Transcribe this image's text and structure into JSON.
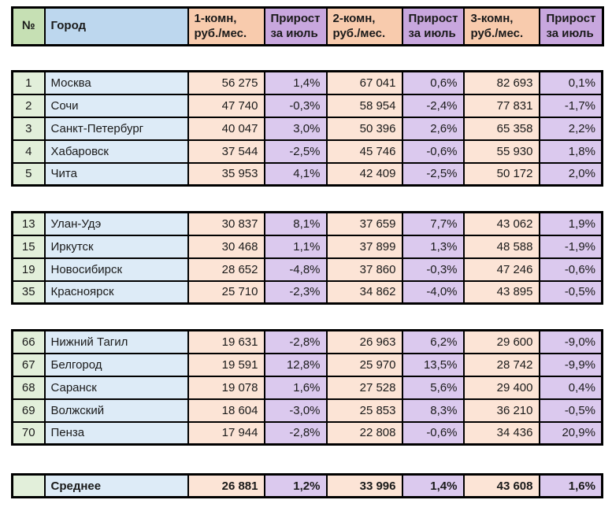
{
  "table": {
    "headers": [
      "№",
      "Город",
      "1-комн,\nруб./мес.",
      "Прирост\nза июль",
      "2-комн,\nруб./мес.",
      "Прирост\nза июль",
      "3-комн,\nруб./мес.",
      "Прирост\nза июль"
    ],
    "blocks": [
      {
        "name": "top-cities",
        "rows": [
          [
            "1",
            "Москва",
            "56 275",
            "1,4%",
            "67 041",
            "0,6%",
            "82 693",
            "0,1%"
          ],
          [
            "2",
            "Сочи",
            "47 740",
            "-0,3%",
            "58 954",
            "-2,4%",
            "77 831",
            "-1,7%"
          ],
          [
            "3",
            "Санкт-Петербург",
            "40 047",
            "3,0%",
            "50 396",
            "2,6%",
            "65 358",
            "2,2%"
          ],
          [
            "4",
            "Хабаровск",
            "37 544",
            "-2,5%",
            "45 746",
            "-0,6%",
            "55 930",
            "1,8%"
          ],
          [
            "5",
            "Чита",
            "35 953",
            "4,1%",
            "42 409",
            "-2,5%",
            "50 172",
            "2,0%"
          ]
        ]
      },
      {
        "name": "middle-cities",
        "rows": [
          [
            "13",
            "Улан-Удэ",
            "30 837",
            "8,1%",
            "37 659",
            "7,7%",
            "43 062",
            "1,9%"
          ],
          [
            "15",
            "Иркутск",
            "30 468",
            "1,1%",
            "37 899",
            "1,3%",
            "48 588",
            "-1,9%"
          ],
          [
            "19",
            "Новосибирск",
            "28 652",
            "-4,8%",
            "37 860",
            "-0,3%",
            "47 246",
            "-0,6%"
          ],
          [
            "35",
            "Красноярск",
            "25 710",
            "-2,3%",
            "34 862",
            "-4,0%",
            "43 895",
            "-0,5%"
          ]
        ]
      },
      {
        "name": "bottom-cities",
        "rows": [
          [
            "66",
            "Нижний Тагил",
            "19 631",
            "-2,8%",
            "26 963",
            "6,2%",
            "29 600",
            "-9,0%"
          ],
          [
            "67",
            "Белгород",
            "19 591",
            "12,8%",
            "25 970",
            "13,5%",
            "28 742",
            "-9,9%"
          ],
          [
            "68",
            "Саранск",
            "19 078",
            "1,6%",
            "27 528",
            "5,6%",
            "29 400",
            "0,4%"
          ],
          [
            "69",
            "Волжский",
            "18 604",
            "-3,0%",
            "25 853",
            "8,3%",
            "36 210",
            "-0,5%"
          ],
          [
            "70",
            "Пенза",
            "17 944",
            "-2,8%",
            "22 808",
            "-0,6%",
            "34 436",
            "20,9%"
          ]
        ]
      }
    ],
    "summary_rows": [
      [
        "",
        "Среднее",
        "26 881",
        "1,2%",
        "33 996",
        "1,4%",
        "43 608",
        "1,6%"
      ]
    ]
  },
  "colors": {
    "header_green": "#C6E0B4",
    "header_blue": "#BDD7EE",
    "header_peach": "#F8CBAD",
    "header_purple": "#C8A7DE",
    "cell_green": "#E2EFDA",
    "cell_blue": "#DDEBF7",
    "cell_peach": "#FCE4D6",
    "cell_purple": "#DBC9EE",
    "border": "#000000"
  }
}
